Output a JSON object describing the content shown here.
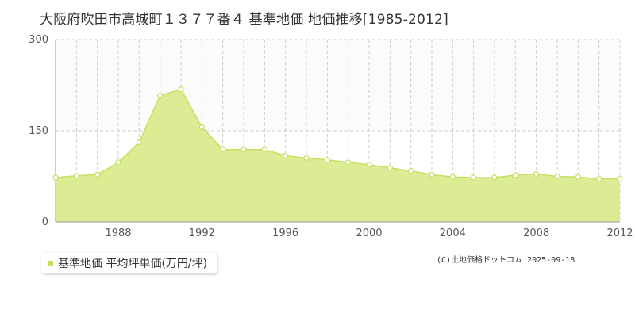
{
  "title": "大阪府吹田市高城町１３７７番４ 基準地価 地価推移[1985-2012]",
  "copyright": "(C)土地価格ドットコム 2025-09-18",
  "colors": {
    "area_fill": "#dbec94",
    "line": "#c5e060",
    "marker_fill": "#ffffff",
    "marker_stroke": "#c5e060",
    "legend_swatch": "#c5e060",
    "grid": "#cccccc",
    "upper_band": "#fbfbfb"
  },
  "chart_data": {
    "type": "area",
    "title": "",
    "xlabel": "",
    "ylabel": "",
    "xlim": [
      1985,
      2012
    ],
    "ylim": [
      0,
      300
    ],
    "y_ticks": [
      "0",
      "150",
      "300"
    ],
    "y_tick_values": [
      0,
      150,
      300
    ],
    "x_ticks": [
      "1988",
      "1992",
      "1996",
      "2000",
      "2004",
      "2008",
      "2012"
    ],
    "x_tick_values": [
      1988,
      1992,
      1996,
      2000,
      2004,
      2008,
      2012
    ],
    "grid": true,
    "legend_position": "bottom-left",
    "series": [
      {
        "name": "基準地価 平均坪単価(万円/坪)",
        "x": [
          1985,
          1986,
          1987,
          1988,
          1989,
          1990,
          1991,
          1992,
          1993,
          1994,
          1995,
          1996,
          1997,
          1998,
          1999,
          2000,
          2001,
          2002,
          2003,
          2004,
          2005,
          2006,
          2007,
          2008,
          2009,
          2010,
          2011,
          2012
        ],
        "values": [
          73,
          76,
          78,
          98,
          131,
          208,
          218,
          156,
          119,
          119,
          119,
          109,
          105,
          102,
          98,
          94,
          89,
          84,
          78,
          74,
          73,
          73,
          77,
          79,
          75,
          74,
          71,
          71
        ]
      }
    ]
  }
}
